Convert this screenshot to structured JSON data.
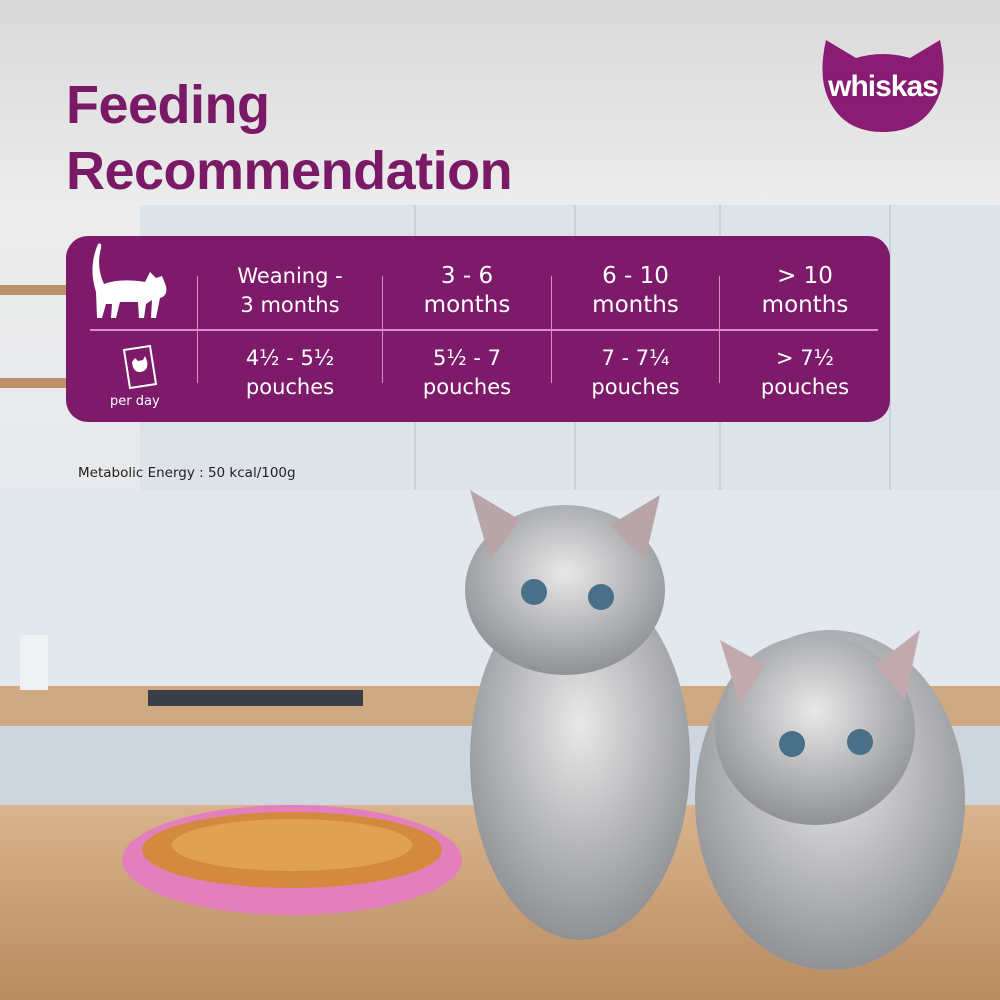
{
  "brand": {
    "logo_text": "whiskas",
    "color": "#7d1a6a"
  },
  "title": {
    "line1": "Feeding",
    "line2": "Recommendation"
  },
  "table": {
    "row_icons": [
      "cat-icon",
      "pouch-icon"
    ],
    "per_day_label": "per day",
    "columns": [
      {
        "age_line1": "Weaning -",
        "age_line2": "3 months",
        "amount_line1": "4½ - 5½",
        "amount_line2": "pouches"
      },
      {
        "age_line1": "3 - 6",
        "age_line2": "months",
        "amount_line1": "5½ - 7",
        "amount_line2": "pouches"
      },
      {
        "age_line1": "6 - 10",
        "age_line2": "months",
        "amount_line1": "7 - 7¼",
        "amount_line2": "pouches"
      },
      {
        "age_line1": "> 10",
        "age_line2": "months",
        "amount_line1": "> 7½",
        "amount_line2": "pouches"
      }
    ]
  },
  "metabolic_energy": "Metabolic Energy : 50 kcal/100g"
}
